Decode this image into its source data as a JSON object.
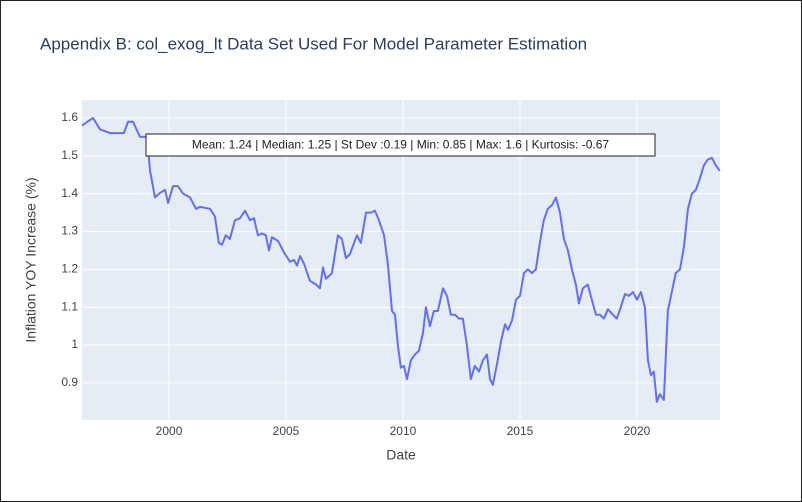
{
  "chart_data": {
    "type": "line",
    "title": "Appendix B: col_exog_lt Data Set Used For Model Parameter Estimation",
    "x_label": "Date",
    "y_label": "Inflation YOY Increase (%)",
    "annotation": "Mean: 1.24 | Median: 1.25 | St Dev :0.19 | Min: 0.85 | Max: 1.6 | Kurtosis: -0.67",
    "x": [
      1996.28,
      1996.75,
      1997.05,
      1997.48,
      1998.07,
      1998.25,
      1998.46,
      1998.76,
      1999.06,
      1999.19,
      1999.4,
      1999.57,
      1999.83,
      1999.96,
      2000.17,
      2000.38,
      2000.6,
      2000.9,
      2001.15,
      2001.32,
      2001.75,
      2001.96,
      2002.13,
      2002.26,
      2002.43,
      2002.6,
      2002.82,
      2003.03,
      2003.25,
      2003.46,
      2003.63,
      2003.8,
      2003.97,
      2004.14,
      2004.27,
      2004.4,
      2004.66,
      2004.91,
      2005.17,
      2005.34,
      2005.47,
      2005.6,
      2005.77,
      2006.02,
      2006.28,
      2006.45,
      2006.58,
      2006.71,
      2006.96,
      2007.22,
      2007.39,
      2007.56,
      2007.73,
      2008.03,
      2008.2,
      2008.42,
      2008.63,
      2008.8,
      2008.97,
      2009.19,
      2009.36,
      2009.53,
      2009.66,
      2009.78,
      2009.91,
      2010.04,
      2010.17,
      2010.34,
      2010.51,
      2010.68,
      2010.85,
      2010.98,
      2011.15,
      2011.32,
      2011.49,
      2011.71,
      2011.88,
      2012.05,
      2012.22,
      2012.39,
      2012.56,
      2012.73,
      2012.9,
      2013.07,
      2013.25,
      2013.42,
      2013.59,
      2013.72,
      2013.84,
      2014.02,
      2014.19,
      2014.36,
      2014.49,
      2014.66,
      2014.83,
      2015.0,
      2015.17,
      2015.34,
      2015.51,
      2015.68,
      2015.85,
      2016.02,
      2016.19,
      2016.37,
      2016.54,
      2016.71,
      2016.88,
      2017.05,
      2017.22,
      2017.39,
      2017.52,
      2017.69,
      2017.9,
      2018.07,
      2018.25,
      2018.42,
      2018.59,
      2018.76,
      2018.97,
      2019.14,
      2019.31,
      2019.49,
      2019.66,
      2019.83,
      2020.0,
      2020.17,
      2020.34,
      2020.47,
      2020.6,
      2020.72,
      2020.85,
      2020.98,
      2021.15,
      2021.32,
      2021.49,
      2021.66,
      2021.84,
      2022.01,
      2022.18,
      2022.35,
      2022.52,
      2022.69,
      2022.86,
      2023.03,
      2023.2,
      2023.37,
      2023.54
    ],
    "series": [
      {
        "name": "col_exog_lt",
        "color": "#636efa",
        "values": [
          1.58,
          1.6,
          1.57,
          1.56,
          1.56,
          1.59,
          1.59,
          1.55,
          1.55,
          1.46,
          1.39,
          1.4,
          1.41,
          1.375,
          1.42,
          1.42,
          1.4,
          1.39,
          1.36,
          1.365,
          1.36,
          1.34,
          1.27,
          1.265,
          1.29,
          1.28,
          1.33,
          1.335,
          1.355,
          1.33,
          1.335,
          1.29,
          1.295,
          1.29,
          1.25,
          1.285,
          1.275,
          1.245,
          1.22,
          1.225,
          1.21,
          1.235,
          1.215,
          1.17,
          1.16,
          1.15,
          1.205,
          1.175,
          1.19,
          1.29,
          1.28,
          1.23,
          1.24,
          1.29,
          1.27,
          1.35,
          1.35,
          1.355,
          1.33,
          1.29,
          1.21,
          1.09,
          1.08,
          1.0,
          0.94,
          0.945,
          0.91,
          0.96,
          0.975,
          0.985,
          1.03,
          1.1,
          1.05,
          1.09,
          1.09,
          1.15,
          1.13,
          1.08,
          1.08,
          1.07,
          1.07,
          1.0,
          0.91,
          0.945,
          0.93,
          0.96,
          0.975,
          0.91,
          0.895,
          0.95,
          1.01,
          1.055,
          1.04,
          1.065,
          1.12,
          1.13,
          1.19,
          1.2,
          1.19,
          1.2,
          1.27,
          1.33,
          1.36,
          1.37,
          1.39,
          1.35,
          1.28,
          1.25,
          1.2,
          1.16,
          1.11,
          1.15,
          1.16,
          1.12,
          1.08,
          1.08,
          1.07,
          1.095,
          1.08,
          1.07,
          1.1,
          1.135,
          1.13,
          1.14,
          1.12,
          1.14,
          1.1,
          0.96,
          0.92,
          0.93,
          0.85,
          0.87,
          0.855,
          1.09,
          1.14,
          1.19,
          1.2,
          1.26,
          1.36,
          1.4,
          1.41,
          1.44,
          1.475,
          1.49,
          1.495,
          1.475,
          1.46
        ]
      }
    ],
    "xlim": [
      1996.28,
      2023.55
    ],
    "ylim": [
      0.802,
      1.6475
    ],
    "xticks": [
      2000,
      2005,
      2010,
      2015,
      2020
    ],
    "yticks": [
      0.9,
      1,
      1.1,
      1.2,
      1.3,
      1.4,
      1.5,
      1.6
    ],
    "grid": true
  }
}
